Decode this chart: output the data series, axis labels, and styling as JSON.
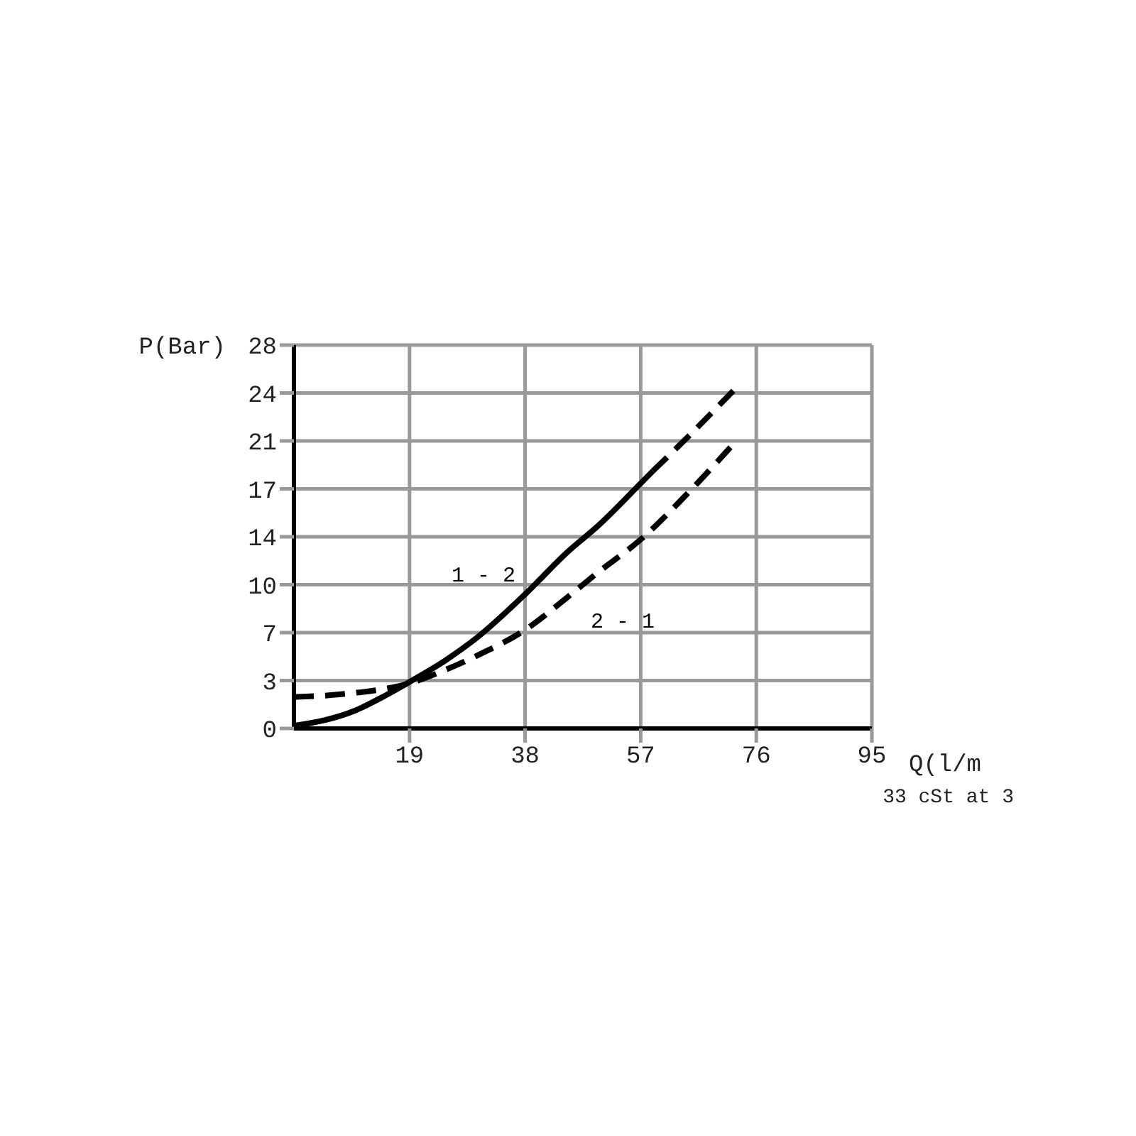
{
  "chart_data": {
    "type": "line",
    "xlabel": "Q(l/m",
    "ylabel": "P(Bar)",
    "annotations": [
      "33 cSt at 3"
    ],
    "xlim": [
      0,
      95
    ],
    "xticks": [
      19,
      38,
      57,
      76,
      95
    ],
    "ylim": [
      0,
      28
    ],
    "yticks": [
      0,
      {
        "value": 3.5,
        "label": "3"
      },
      7,
      {
        "value": 10.5,
        "label": "10"
      },
      14,
      {
        "value": 17.5,
        "label": "17"
      },
      21,
      {
        "value": 24.5,
        "label": "24"
      },
      28
    ],
    "grid": true,
    "series": [
      {
        "name": "1 - 2",
        "color": "#000000",
        "line_style": "solid",
        "x": [
          0,
          5,
          10,
          15,
          19,
          25,
          30,
          38,
          45,
          50,
          57,
          59
        ],
        "values": [
          0.2,
          0.6,
          1.3,
          2.4,
          3.4,
          5.0,
          6.6,
          9.8,
          12.9,
          14.8,
          17.9,
          18.8
        ]
      },
      {
        "name": "2 - 1",
        "color": "#000000",
        "line_style": "dashed",
        "x": [
          0,
          5,
          10,
          15,
          19,
          25,
          30,
          38,
          45,
          50,
          57,
          65,
          72.7
        ],
        "values": [
          2.3,
          2.4,
          2.6,
          2.9,
          3.3,
          4.3,
          5.3,
          7.2,
          9.6,
          11.4,
          13.8,
          17.3,
          21.0
        ]
      },
      {
        "color": "#000000",
        "line_style": "dashed",
        "x": [
          59,
          65,
          72.3
        ],
        "values": [
          18.8,
          21.4,
          24.7
        ]
      }
    ]
  }
}
